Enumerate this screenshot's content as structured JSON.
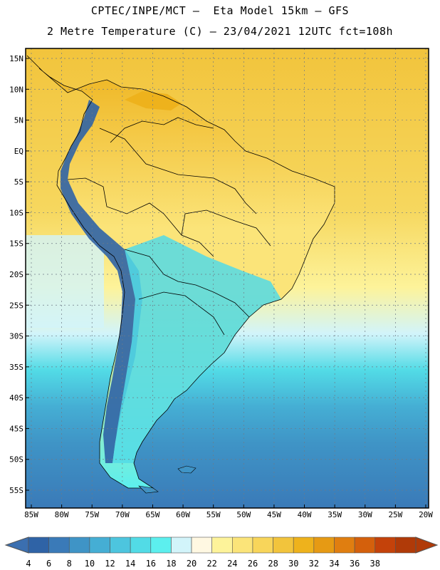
{
  "title_line1": "CPTEC/INPE/MCT –  Eta Model 15km – GFS",
  "title_line2": "2 Metre Temperature (C) – 23/04/2021 12UTC fct=108h",
  "lon_labels": [
    "85W",
    "80W",
    "75W",
    "70W",
    "65W",
    "60W",
    "55W",
    "50W",
    "45W",
    "40W",
    "35W",
    "30W",
    "25W",
    "20W"
  ],
  "lat_labels": [
    "15N",
    "10N",
    "5N",
    "EQ",
    "5S",
    "10S",
    "15S",
    "20S",
    "25S",
    "30S",
    "35S",
    "40S",
    "45S",
    "50S",
    "55S"
  ],
  "colorbar": {
    "labels": [
      "4",
      "6",
      "8",
      "10",
      "12",
      "14",
      "16",
      "18",
      "20",
      "22",
      "24",
      "26",
      "28",
      "30",
      "32",
      "34",
      "36",
      "38"
    ],
    "low_color": "#3b6fb0",
    "high_color": "#b03a08",
    "colors": [
      "#2f63a6",
      "#3a7ab8",
      "#3f94c6",
      "#45aed4",
      "#4dc5de",
      "#52dbe6",
      "#5cefee",
      "#d2f4fa",
      "#fff8e2",
      "#fdf39a",
      "#fbe479",
      "#f8d55a",
      "#f2c43c",
      "#eeb21c",
      "#e69a14",
      "#e07e10",
      "#d4600c",
      "#c4420a",
      "#b03a08"
    ]
  },
  "map_colors": {
    "ocean_warm": "#f6d75e",
    "ocean_hot": "#f2c43c",
    "ocean_mid": "#fdf39a",
    "ocean_cool": "#d2f4fa",
    "ocean_cold1": "#52dbe6",
    "ocean_cold2": "#45aed4",
    "ocean_cold3": "#3f94c6",
    "ocean_cold4": "#3a7ab8",
    "land_amazon": "#fbe479",
    "land_hot": "#eeb21c",
    "land_cool": "#5cefee",
    "andes": "#2f63a6"
  }
}
